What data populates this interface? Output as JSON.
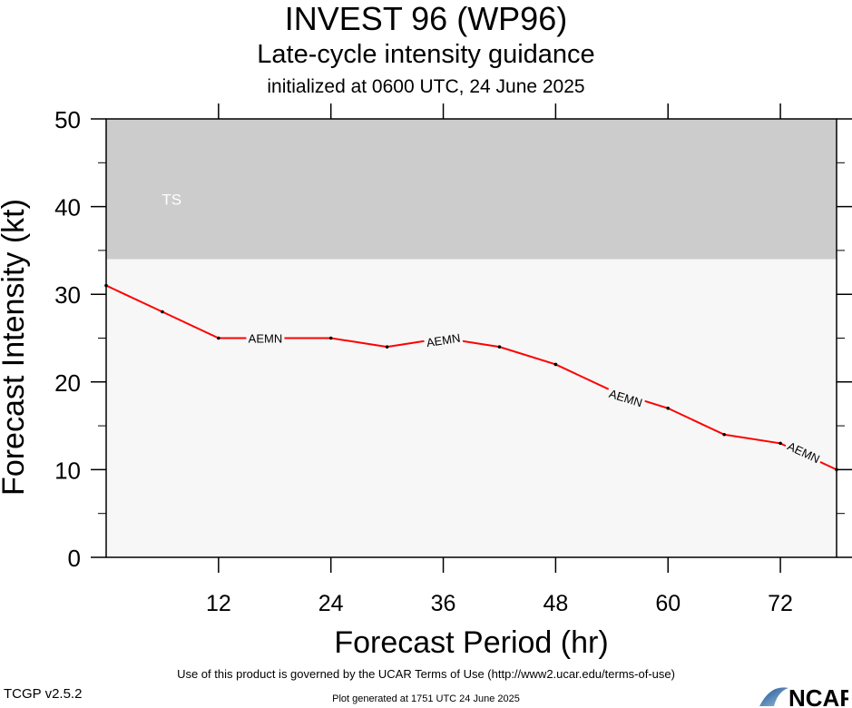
{
  "title": "INVEST 96 (WP96)",
  "subtitle": "Late-cycle intensity guidance",
  "init_line": "initialized at 0600 UTC, 24 June 2025",
  "footer": {
    "terms": "Use of this product is governed by the UCAR Terms of Use (http://www2.ucar.edu/terms-of-use)",
    "version": "TCGP v2.5.2",
    "generated": "Plot generated at 1751 UTC   24 June 2025",
    "logo_text": "NCAR"
  },
  "chart_data": {
    "type": "line",
    "title": "INVEST 96 (WP96)",
    "xlabel": "Forecast Period (hr)",
    "ylabel": "Forecast Intensity (kt)",
    "xlim": [
      0,
      78
    ],
    "ylim": [
      0,
      50
    ],
    "x_ticks": [
      12,
      24,
      36,
      48,
      60,
      72
    ],
    "y_ticks": [
      0,
      10,
      20,
      30,
      40,
      50
    ],
    "grid": false,
    "bands": [
      {
        "label": "TS",
        "from": 34,
        "to": 50,
        "color": "#cccccc"
      },
      {
        "label": "",
        "from": 0,
        "to": 34,
        "color": "#f7f7f7"
      }
    ],
    "series": [
      {
        "name": "AEMN",
        "color": "#ff0000",
        "x": [
          0,
          6,
          12,
          18,
          24,
          30,
          36,
          42,
          48,
          54,
          60,
          66,
          72,
          78
        ],
        "values": [
          31,
          28,
          25,
          25,
          25,
          24,
          25,
          24,
          22,
          19,
          17,
          14,
          13,
          10
        ]
      }
    ],
    "series_labels": [
      {
        "text": "AEMN",
        "x": 17,
        "y": 25
      },
      {
        "text": "AEMN",
        "x": 36,
        "y": 24.8
      },
      {
        "text": "AEMN",
        "x": 55.5,
        "y": 18.2
      },
      {
        "text": "AEMN",
        "x": 74.5,
        "y": 12
      }
    ]
  }
}
